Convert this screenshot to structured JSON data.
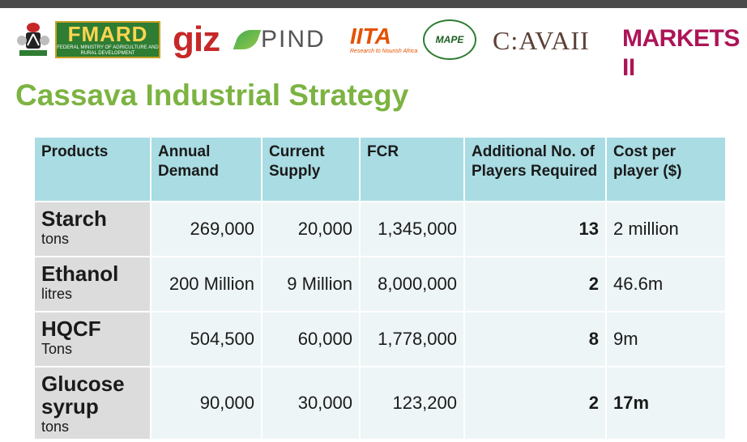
{
  "logos": {
    "fmard": {
      "name": "FMARD",
      "subtitle": "FEDERAL MINISTRY OF AGRICULTURE AND RURAL DEVELOPMENT"
    },
    "giz": "giz",
    "pind": "PIND",
    "iita": {
      "name": "IITA",
      "tagline": "Research to Nourish Africa"
    },
    "mape": "MAPE",
    "cavaii": "C:AVAII",
    "markets": "MARKETS II"
  },
  "title": "Cassava Industrial Strategy",
  "table": {
    "headers": {
      "products": "Products",
      "annual_demand": "Annual Demand",
      "current_supply": "Current Supply",
      "fcr": "FCR",
      "additional_players": "Additional No. of Players Required",
      "cost_per_player": "Cost per player ($)"
    },
    "rows": [
      {
        "product": "Starch",
        "unit": "tons",
        "annual_demand": "269,000",
        "current_supply": "20,000",
        "fcr": "1,345,000",
        "additional_players": "13",
        "cost": "2 million"
      },
      {
        "product": "Ethanol",
        "unit": "litres",
        "annual_demand": "200 Million",
        "current_supply": "9 Million",
        "fcr": "8,000,000",
        "additional_players": "2",
        "cost": "46.6m"
      },
      {
        "product": "HQCF",
        "unit": "Tons",
        "annual_demand": "504,500",
        "current_supply": "60,000",
        "fcr": "1,778,000",
        "additional_players": "8",
        "cost": "9m"
      },
      {
        "product": "Glucose syrup",
        "unit": "tons",
        "annual_demand": "90,000",
        "current_supply": "30,000",
        "fcr": "123,200",
        "additional_players": "2",
        "cost": "17m"
      }
    ]
  }
}
